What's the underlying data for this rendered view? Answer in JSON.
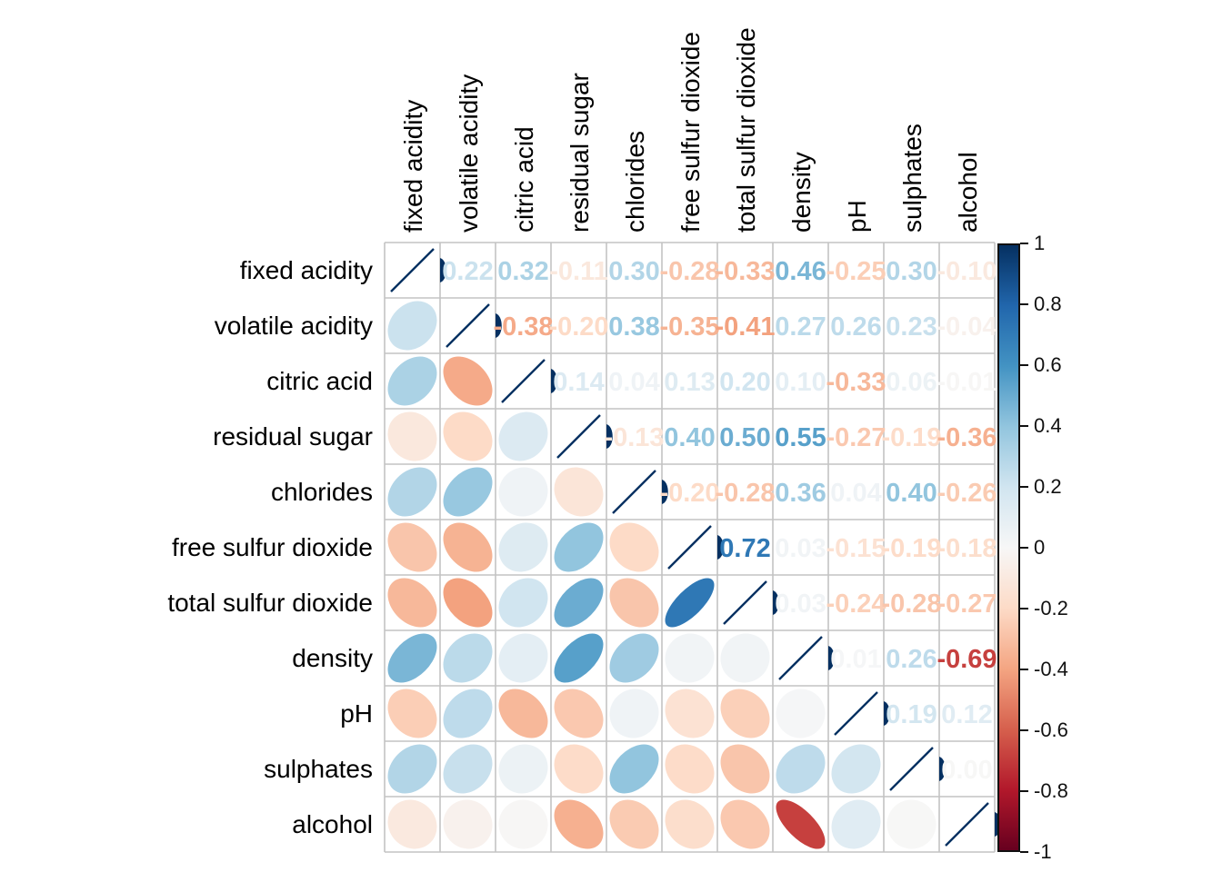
{
  "chart_data": {
    "type": "heatmap",
    "subtype": "correlation-matrix (mixed: lower triangle = ellipses, upper triangle = numbers, diagonal = r=1 line)",
    "title": "",
    "variables": [
      "fixed acidity",
      "volatile acidity",
      "citric acid",
      "residual sugar",
      "chlorides",
      "free sulfur dioxide",
      "total sulfur dioxide",
      "density",
      "pH",
      "sulphates",
      "alcohol"
    ],
    "matrix": [
      [
        1,
        0.22,
        0.32,
        -0.11,
        0.3,
        -0.28,
        -0.33,
        0.46,
        -0.25,
        0.3,
        -0.1
      ],
      [
        0.22,
        1,
        -0.38,
        -0.2,
        0.38,
        -0.35,
        -0.41,
        0.27,
        0.26,
        0.23,
        -0.04
      ],
      [
        0.32,
        -0.38,
        1,
        0.14,
        0.04,
        0.13,
        0.2,
        0.1,
        -0.33,
        0.06,
        -0.01
      ],
      [
        -0.11,
        -0.2,
        0.14,
        1,
        -0.13,
        0.4,
        0.5,
        0.55,
        -0.27,
        -0.19,
        -0.36
      ],
      [
        0.3,
        0.38,
        0.04,
        -0.13,
        1,
        -0.2,
        -0.28,
        0.36,
        0.04,
        0.4,
        -0.26
      ],
      [
        -0.28,
        -0.35,
        0.13,
        0.4,
        -0.2,
        1,
        0.72,
        0.03,
        -0.15,
        -0.19,
        -0.18
      ],
      [
        -0.33,
        -0.41,
        0.2,
        0.5,
        -0.28,
        0.72,
        1,
        0.03,
        -0.24,
        -0.28,
        -0.27
      ],
      [
        0.46,
        0.27,
        0.1,
        0.55,
        0.36,
        0.03,
        0.03,
        1,
        0.01,
        0.26,
        -0.69
      ],
      [
        -0.25,
        0.26,
        -0.33,
        -0.27,
        0.04,
        -0.15,
        -0.24,
        0.01,
        1,
        0.19,
        0.12
      ],
      [
        0.3,
        0.23,
        0.06,
        -0.19,
        0.4,
        -0.19,
        -0.28,
        0.26,
        0.19,
        1,
        -0.003
      ],
      [
        -0.1,
        -0.04,
        -0.01,
        -0.36,
        -0.26,
        -0.18,
        -0.27,
        -0.69,
        0.12,
        -0.003,
        1
      ]
    ],
    "diagonal_value_label": "1.00",
    "colorbar": {
      "position": "right",
      "range": [
        -1,
        1
      ],
      "tick_labels": [
        "1",
        "0.8",
        "0.6",
        "0.4",
        "0.2",
        "0",
        "-0.2",
        "-0.4",
        "-0.6",
        "-0.8",
        "-1"
      ]
    },
    "palette": {
      "name": "RdBu",
      "stops": [
        {
          "v": -1.0,
          "c": "#67001F"
        },
        {
          "v": -0.8,
          "c": "#B2182B"
        },
        {
          "v": -0.6,
          "c": "#D6604D"
        },
        {
          "v": -0.4,
          "c": "#F4A582"
        },
        {
          "v": -0.2,
          "c": "#FDDBC7"
        },
        {
          "v": 0.0,
          "c": "#F7F7F7"
        },
        {
          "v": 0.2,
          "c": "#D1E5F0"
        },
        {
          "v": 0.4,
          "c": "#92C5DE"
        },
        {
          "v": 0.6,
          "c": "#4393C3"
        },
        {
          "v": 0.8,
          "c": "#2166AC"
        },
        {
          "v": 1.0,
          "c": "#053061"
        }
      ]
    },
    "colors": {
      "diagonal_line": "#053061",
      "grid": "#C3C3C3",
      "labels": "#000000",
      "background": "#FFFFFF"
    },
    "legend_position": "right",
    "grid": true
  }
}
